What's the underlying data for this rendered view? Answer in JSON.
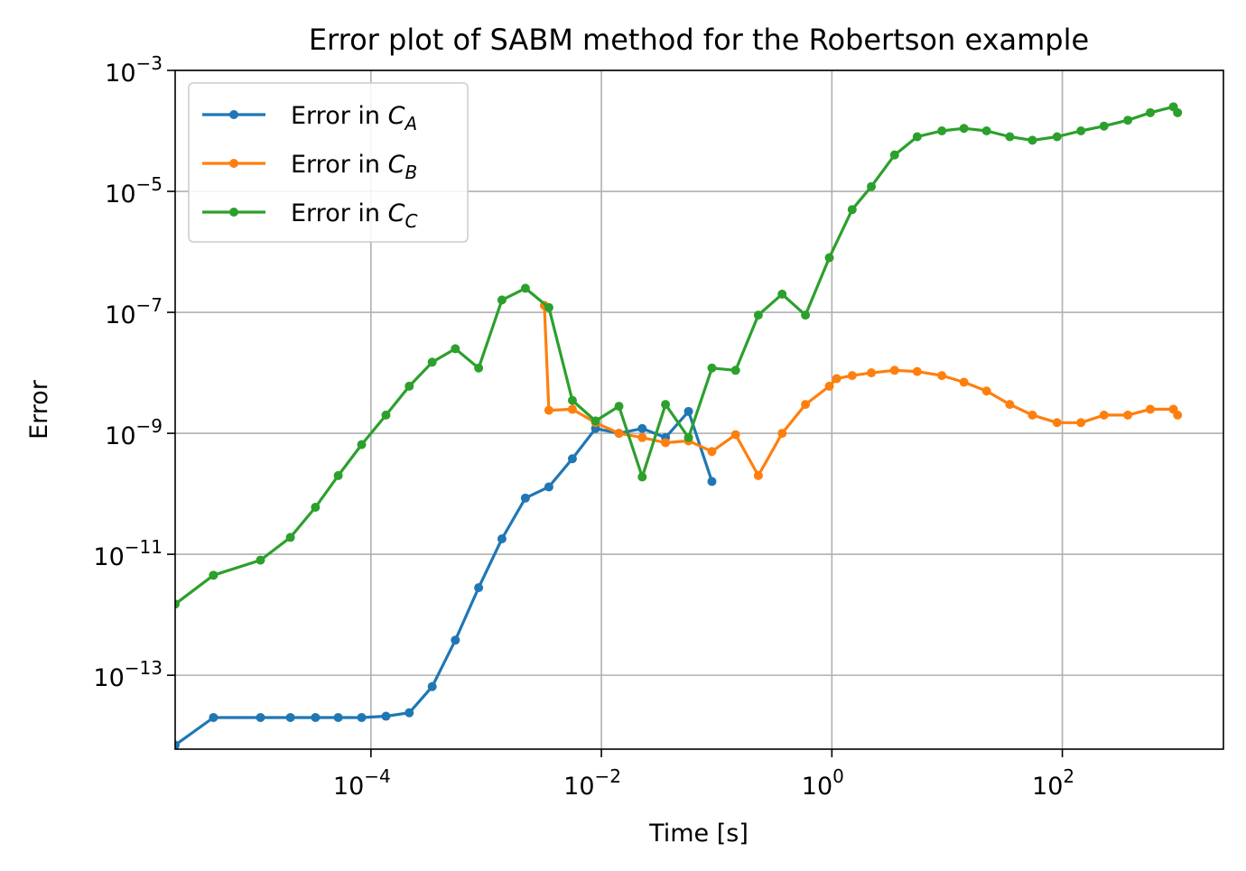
{
  "chart_data": {
    "type": "line",
    "title": "Error plot of SABM method for the Robertson example",
    "xlabel": "Time [s]",
    "ylabel": "Error",
    "xscale": "log",
    "yscale": "log",
    "xlim": [
      2e-06,
      2500
    ],
    "ylim": [
      6e-15,
      0.001
    ],
    "grid": true,
    "legend_position": "top-left",
    "xticks": [
      {
        "value": 0.0001,
        "base": "10",
        "exp": "−4"
      },
      {
        "value": 0.01,
        "base": "10",
        "exp": "−2"
      },
      {
        "value": 1,
        "base": "10",
        "exp": "0"
      },
      {
        "value": 100,
        "base": "10",
        "exp": "2"
      }
    ],
    "yticks": [
      {
        "value": 1e-13,
        "base": "10",
        "exp": "−13"
      },
      {
        "value": 1e-11,
        "base": "10",
        "exp": "−11"
      },
      {
        "value": 1e-09,
        "base": "10",
        "exp": "−9"
      },
      {
        "value": 1e-07,
        "base": "10",
        "exp": "−7"
      },
      {
        "value": 1e-05,
        "base": "10",
        "exp": "−5"
      },
      {
        "value": 0.001,
        "base": "10",
        "exp": "−3"
      }
    ],
    "series": [
      {
        "name": "Error in C_A",
        "legend_prefix": "Error in ",
        "legend_var": "C",
        "legend_sub": "A",
        "color": "#1f77b4",
        "x": [
          2e-06,
          4.3e-06,
          1.1e-05,
          2e-05,
          3.3e-05,
          5.2e-05,
          8.3e-05,
          0.000135,
          0.000215,
          0.00034,
          0.00054,
          0.00086,
          0.00137,
          0.00219,
          0.0035,
          0.0056,
          0.0089,
          0.0142,
          0.0226,
          0.036,
          0.057,
          0.091
        ],
        "y": [
          7e-15,
          2e-14,
          2e-14,
          2e-14,
          2e-14,
          2e-14,
          2e-14,
          2.1e-14,
          2.4e-14,
          6.5e-14,
          3.8e-13,
          2.8e-12,
          1.8e-11,
          8.5e-11,
          1.3e-10,
          3.8e-10,
          1.2e-09,
          1e-09,
          1.2e-09,
          8.5e-10,
          2.3e-09,
          1.6e-10
        ]
      },
      {
        "name": "Error in C_B",
        "legend_prefix": "Error in ",
        "legend_var": "C",
        "legend_sub": "B",
        "color": "#ff7f0e",
        "x": [
          0.0032,
          0.0035,
          0.0056,
          0.0089,
          0.0142,
          0.0226,
          0.036,
          0.057,
          0.091,
          0.146,
          0.23,
          0.37,
          0.59,
          0.95,
          1.1,
          1.5,
          2.2,
          3.5,
          5.5,
          9,
          14,
          22,
          35,
          55,
          90,
          145,
          230,
          370,
          580,
          920,
          1000
        ],
        "y": [
          1.3e-07,
          2.4e-09,
          2.5e-09,
          1.5e-09,
          1e-09,
          8.5e-10,
          7e-10,
          7.5e-10,
          5e-10,
          9.5e-10,
          2e-10,
          1e-09,
          3e-09,
          6e-09,
          8e-09,
          9e-09,
          1e-08,
          1.1e-08,
          1.05e-08,
          9e-09,
          7e-09,
          5e-09,
          3e-09,
          2e-09,
          1.5e-09,
          1.5e-09,
          2e-09,
          2e-09,
          2.5e-09,
          2.5e-09,
          2e-09
        ]
      },
      {
        "name": "Error in C_C",
        "legend_prefix": "Error in ",
        "legend_var": "C",
        "legend_sub": "C",
        "color": "#2ca02c",
        "x": [
          2e-06,
          4.3e-06,
          1.1e-05,
          2e-05,
          3.3e-05,
          5.2e-05,
          8.3e-05,
          0.000135,
          0.000215,
          0.00034,
          0.00054,
          0.00086,
          0.00137,
          0.00219,
          0.0035,
          0.0056,
          0.0089,
          0.0142,
          0.0226,
          0.036,
          0.057,
          0.091,
          0.146,
          0.23,
          0.37,
          0.59,
          0.95,
          1.5,
          2.2,
          3.5,
          5.5,
          9,
          14,
          22,
          35,
          55,
          90,
          145,
          230,
          370,
          580,
          920,
          1000
        ],
        "y": [
          1.5e-12,
          4.5e-12,
          8e-12,
          1.9e-11,
          6e-11,
          2e-10,
          6.5e-10,
          2e-09,
          6e-09,
          1.5e-08,
          2.5e-08,
          1.2e-08,
          1.6e-07,
          2.5e-07,
          1.2e-07,
          3.5e-09,
          1.6e-09,
          2.8e-09,
          1.9e-10,
          3e-09,
          8.5e-10,
          1.2e-08,
          1.1e-08,
          9e-08,
          2e-07,
          9e-08,
          8e-07,
          5e-06,
          1.2e-05,
          4e-05,
          8e-05,
          0.0001,
          0.00011,
          0.0001,
          8e-05,
          7e-05,
          8e-05,
          0.0001,
          0.00012,
          0.00015,
          0.0002,
          0.00025,
          0.0002
        ]
      }
    ]
  }
}
